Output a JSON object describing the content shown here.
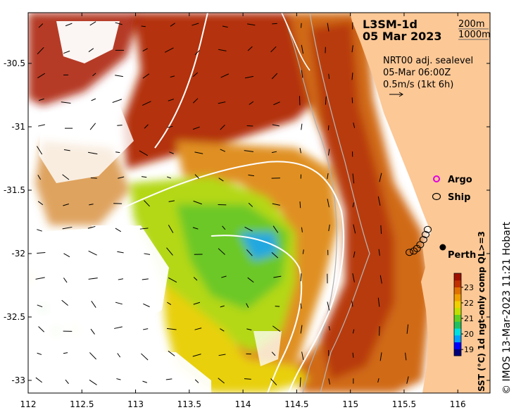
{
  "map": {
    "title_line1": "L3SM-1d",
    "title_line2": "05 Mar 2023",
    "depth_contours": [
      "200m",
      "1000m"
    ],
    "current_info": {
      "line1": "NRT00 adj. sealevel",
      "line2": "05-Mar 06:00Z",
      "line3": "0.5m/s (1kt 6h)"
    },
    "legend": {
      "argo_label": "Argo",
      "ship_label": "Ship",
      "argo_color": "#e000e0",
      "ship_color": "#000000"
    },
    "place_label": "Perth",
    "credit": "© IMOS 13-Mar-2023 11:21 Hobart",
    "colorbar": {
      "label": "SST (°C) 1d ngt-only comp QL>=3",
      "ticks": [
        {
          "value": 19,
          "label": "19"
        },
        {
          "value": 20,
          "label": "20"
        },
        {
          "value": 21,
          "label": "21"
        },
        {
          "value": 22,
          "label": "22"
        },
        {
          "value": 23,
          "label": "23"
        }
      ],
      "range": [
        18.6,
        23.9
      ],
      "colors": [
        "#00007a",
        "#0000ff",
        "#00a0ff",
        "#00e0e0",
        "#20c060",
        "#60d020",
        "#c0e000",
        "#f0d000",
        "#f0a000",
        "#e07000",
        "#c03000",
        "#a01000"
      ]
    },
    "land_color": "#fcc896",
    "axes": {
      "x_ticks": [
        {
          "value": 112,
          "label": "112"
        },
        {
          "value": 112.5,
          "label": "112.5"
        },
        {
          "value": 113,
          "label": "113"
        },
        {
          "value": 113.5,
          "label": "113.5"
        },
        {
          "value": 114,
          "label": "114"
        },
        {
          "value": 114.5,
          "label": "114.5"
        },
        {
          "value": 115,
          "label": "115"
        },
        {
          "value": 115.5,
          "label": "115.5"
        },
        {
          "value": 116,
          "label": "116"
        }
      ],
      "y_ticks": [
        {
          "value": -30.5,
          "label": "-30.5"
        },
        {
          "value": -31,
          "label": "-31"
        },
        {
          "value": -31.5,
          "label": "-31.5"
        },
        {
          "value": -32,
          "label": "-32"
        },
        {
          "value": -32.5,
          "label": "-32.5"
        },
        {
          "value": -33,
          "label": "-33"
        }
      ],
      "xlim": [
        112,
        116.3
      ],
      "ylim": [
        -33.1,
        -30.1
      ]
    },
    "markers": {
      "perth": {
        "lon": 115.86,
        "lat": -31.95
      },
      "ship_track": [
        {
          "lon": 115.55,
          "lat": -31.99
        },
        {
          "lon": 115.59,
          "lat": -31.98
        },
        {
          "lon": 115.62,
          "lat": -31.96
        },
        {
          "lon": 115.65,
          "lat": -31.93
        },
        {
          "lon": 115.68,
          "lat": -31.89
        },
        {
          "lon": 115.7,
          "lat": -31.85
        },
        {
          "lon": 115.72,
          "lat": -31.81
        }
      ]
    }
  }
}
